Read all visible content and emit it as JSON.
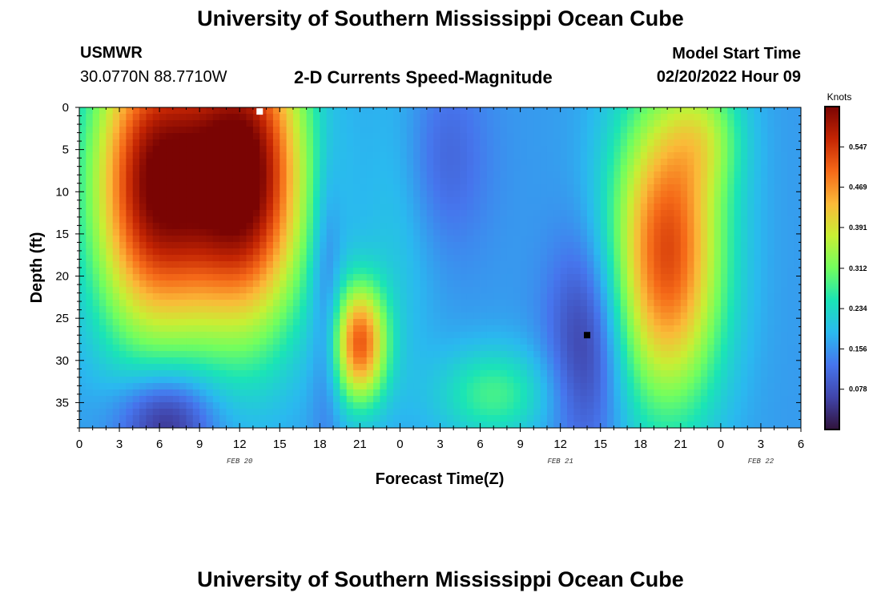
{
  "header": {
    "title": "University of Southern Mississippi Ocean Cube",
    "station": "USMWR",
    "coords": "30.0770N  88.7710W",
    "subtitle": "2-D Currents Speed-Magnitude",
    "model_start_label": "Model Start Time",
    "model_start_value": "02/20/2022 Hour 09"
  },
  "footer": {
    "title": "University of Southern Mississippi Ocean Cube"
  },
  "chart_data": {
    "type": "heatmap",
    "title": "2-D Currents Speed-Magnitude",
    "xlabel": "Forecast Time(Z)",
    "ylabel": "Depth (ft)",
    "xlim": [
      0,
      54
    ],
    "ylim": [
      38,
      0
    ],
    "x_tick_values": [
      0,
      3,
      6,
      9,
      12,
      15,
      18,
      21,
      24,
      27,
      30,
      33,
      36,
      39,
      42,
      45,
      48,
      51,
      54
    ],
    "x_tick_labels": [
      "0",
      "3",
      "6",
      "9",
      "12",
      "15",
      "18",
      "21",
      "0",
      "3",
      "6",
      "9",
      "12",
      "15",
      "18",
      "21",
      "0",
      "3",
      "6"
    ],
    "date_labels": [
      {
        "text": "FEB 20",
        "hour": 12
      },
      {
        "text": "FEB 21",
        "hour": 36
      },
      {
        "text": "FEB 22",
        "hour": 51
      }
    ],
    "y_ticks": [
      0,
      5,
      10,
      15,
      20,
      25,
      30,
      35
    ],
    "colorbar": {
      "units": "Knots",
      "vmin": 0.0,
      "vmax": 0.625,
      "ticks": [
        "0.547",
        "0.469",
        "0.391",
        "0.312",
        "0.234",
        "0.156",
        "0.078"
      ]
    },
    "blobs": [
      {
        "hour": 5.5,
        "depth": 9,
        "sx": 3.3,
        "sy": 13,
        "amp": 0.44
      },
      {
        "hour": 12.5,
        "depth": 8,
        "sx": 3.2,
        "sy": 13,
        "amp": 0.47
      },
      {
        "hour": 21,
        "depth": 28,
        "sx": 1.4,
        "sy": 5,
        "amp": 0.34
      },
      {
        "hour": 44,
        "depth": 17,
        "sx": 3.0,
        "sy": 13,
        "amp": 0.37
      },
      {
        "hour": 47,
        "depth": 3,
        "sx": 2.0,
        "sy": 5,
        "amp": 0.1
      },
      {
        "hour": 31,
        "depth": 34,
        "sx": 3.0,
        "sy": 4,
        "amp": 0.12
      },
      {
        "hour": 24,
        "depth": 12,
        "sx": 2.0,
        "sy": 15,
        "amp": 0.05
      },
      {
        "hour": 38,
        "depth": 28,
        "sx": 2.0,
        "sy": 9,
        "amp": -0.12
      },
      {
        "hour": 6.5,
        "depth": 37,
        "sx": 2.5,
        "sy": 4,
        "amp": -0.15
      },
      {
        "hour": 27,
        "depth": 6,
        "sx": 2.5,
        "sy": 8,
        "amp": -0.06
      },
      {
        "hour": 18.5,
        "depth": 22,
        "sx": 0.8,
        "sy": 12,
        "amp": -0.07
      }
    ],
    "base_value": 0.16,
    "markers": [
      {
        "hour": 13.5,
        "depth": 0.2,
        "color": "#ffffff"
      },
      {
        "hour": 38,
        "depth": 27,
        "color": "#000000"
      }
    ]
  }
}
